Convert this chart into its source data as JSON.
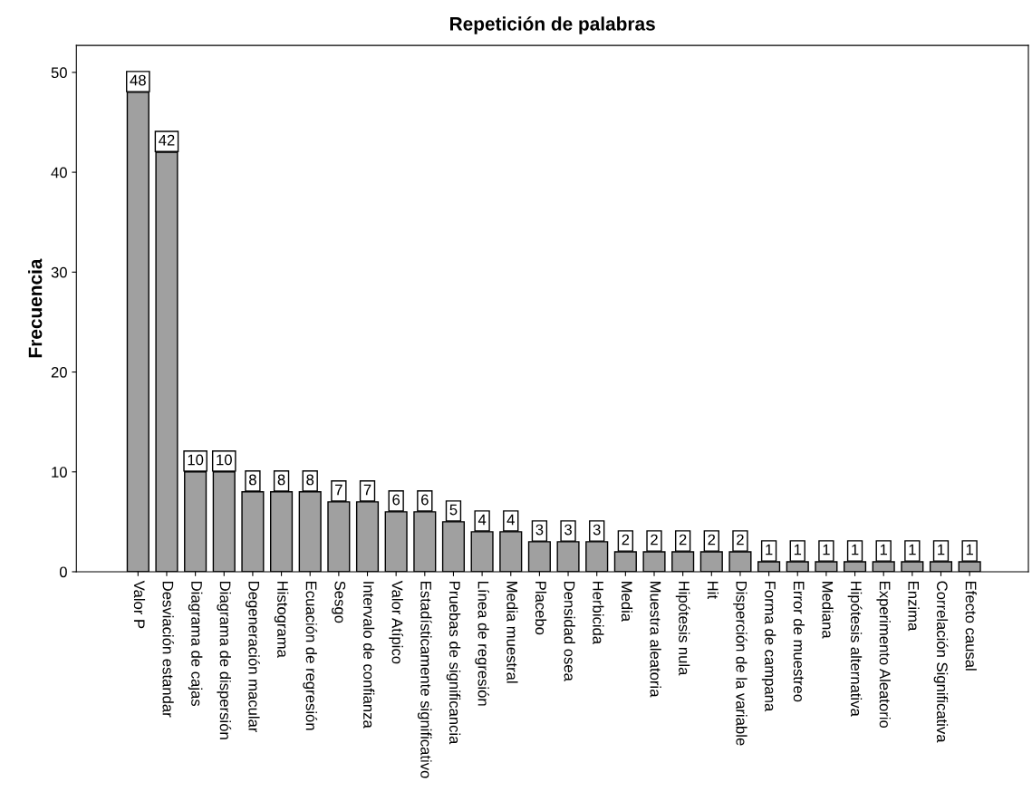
{
  "chart_data": {
    "type": "bar",
    "title": "Repetición de palabras",
    "ylabel": "Frecuencia",
    "categories": [
      "Valor P",
      "Desviación estandar",
      "Diagrama de cajas",
      "Diagrama de dispersión",
      "Degeneración macular",
      "Histograma",
      "Ecuación de regresión",
      "Sesgo",
      "Intervalo de confianza",
      "Valor Atípico",
      "Estadísticamente significativo",
      "Pruebas de significancia",
      "Línea de regresión",
      "Media muestral",
      "Placebo",
      "Densidad osea",
      "Herbicida",
      "Media",
      "Muestra aleatoria",
      "Hipótesis nula",
      "Hit",
      "Disperción de la variable",
      "Forma de campana",
      "Error de muestreo",
      "Mediana",
      "Hipótesis alternativa",
      "Experimento Aleatorio",
      "Enzima",
      "Correlación Significativa",
      "Efecto causal"
    ],
    "values": [
      48,
      42,
      10,
      10,
      8,
      8,
      8,
      7,
      7,
      6,
      6,
      5,
      4,
      4,
      3,
      3,
      3,
      2,
      2,
      2,
      2,
      2,
      1,
      1,
      1,
      1,
      1,
      1,
      1,
      1
    ],
    "color": "#a0a0a0",
    "ylim": [
      0,
      52.7
    ],
    "yticks": [
      0,
      10,
      20,
      30,
      40,
      50
    ],
    "grid": false,
    "data_labels": true
  }
}
